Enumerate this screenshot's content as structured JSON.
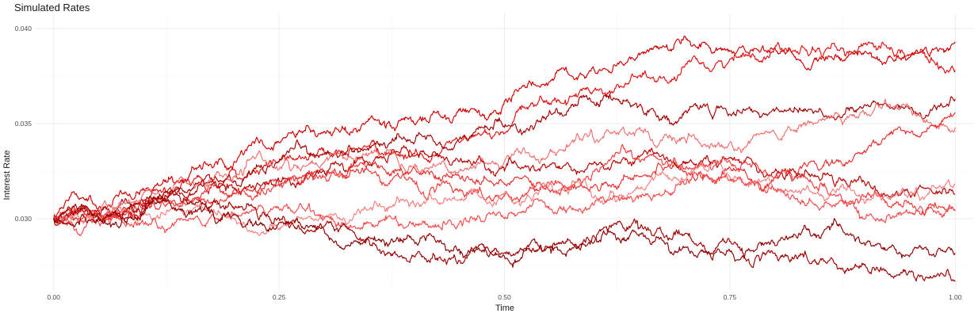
{
  "chart_data": {
    "type": "line",
    "title": "Simulated Rates",
    "xlabel": "Time",
    "ylabel": "Interest Rate",
    "xlim": [
      -0.02,
      1.02
    ],
    "ylim": [
      0.02625,
      0.04075
    ],
    "x_ticks": [
      0.0,
      0.25,
      0.5,
      0.75,
      1.0
    ],
    "x_tick_labels": [
      "0.00",
      "0.25",
      "0.50",
      "0.75",
      "1.00"
    ],
    "y_ticks": [
      0.03,
      0.035,
      0.04
    ],
    "y_tick_labels": [
      "0.030",
      "0.035",
      "0.040"
    ],
    "grid": true,
    "legend": "none",
    "x": [
      0.0,
      0.05,
      0.1,
      0.15,
      0.2,
      0.25,
      0.3,
      0.35,
      0.4,
      0.45,
      0.5,
      0.55,
      0.6,
      0.65,
      0.7,
      0.75,
      0.8,
      0.85,
      0.9,
      0.95,
      1.0
    ],
    "series": [
      {
        "color": "#cc0000",
        "values": [
          0.03,
          0.0306,
          0.0315,
          0.0322,
          0.033,
          0.034,
          0.0346,
          0.0352,
          0.035,
          0.0357,
          0.0362,
          0.0372,
          0.0378,
          0.0386,
          0.0396,
          0.0388,
          0.039,
          0.0385,
          0.0388,
          0.0385,
          0.0393
        ]
      },
      {
        "color": "#e01010",
        "values": [
          0.03,
          0.0303,
          0.031,
          0.032,
          0.0326,
          0.033,
          0.0335,
          0.0338,
          0.0334,
          0.034,
          0.0345,
          0.036,
          0.0368,
          0.0375,
          0.038,
          0.0384,
          0.039,
          0.0388,
          0.0392,
          0.0386,
          0.0378
        ]
      },
      {
        "color": "#a00000",
        "values": [
          0.03,
          0.0302,
          0.0308,
          0.0315,
          0.032,
          0.033,
          0.0334,
          0.0337,
          0.034,
          0.0342,
          0.0348,
          0.0357,
          0.036,
          0.036,
          0.0356,
          0.0355,
          0.0357,
          0.0358,
          0.036,
          0.0358,
          0.0363
        ]
      },
      {
        "color": "#f07070",
        "values": [
          0.03,
          0.0305,
          0.0314,
          0.0318,
          0.0322,
          0.0326,
          0.033,
          0.0334,
          0.0328,
          0.0325,
          0.033,
          0.0335,
          0.034,
          0.0348,
          0.0342,
          0.034,
          0.0345,
          0.0352,
          0.0356,
          0.0358,
          0.0348
        ]
      },
      {
        "color": "#e53030",
        "values": [
          0.03,
          0.0302,
          0.0305,
          0.031,
          0.0315,
          0.0318,
          0.0325,
          0.033,
          0.0327,
          0.0322,
          0.0318,
          0.0315,
          0.0318,
          0.0322,
          0.0325,
          0.0327,
          0.0322,
          0.0326,
          0.0335,
          0.0345,
          0.0356
        ]
      },
      {
        "color": "#b50000",
        "values": [
          0.03,
          0.0304,
          0.0307,
          0.0312,
          0.0316,
          0.032,
          0.0325,
          0.0328,
          0.0333,
          0.033,
          0.0325,
          0.0328,
          0.033,
          0.0333,
          0.033,
          0.0332,
          0.0325,
          0.032,
          0.0318,
          0.0312,
          0.0313
        ]
      },
      {
        "color": "#ee3b3b",
        "values": [
          0.03,
          0.0301,
          0.0304,
          0.0308,
          0.0313,
          0.0318,
          0.0322,
          0.0325,
          0.032,
          0.0315,
          0.0312,
          0.0318,
          0.0325,
          0.033,
          0.0326,
          0.033,
          0.0322,
          0.0318,
          0.0312,
          0.0308,
          0.0304
        ]
      },
      {
        "color": "#f58080",
        "values": [
          0.03,
          0.03,
          0.0302,
          0.0304,
          0.03,
          0.0295,
          0.03,
          0.0305,
          0.0308,
          0.031,
          0.0314,
          0.0318,
          0.0312,
          0.0316,
          0.032,
          0.0322,
          0.0315,
          0.0312,
          0.0308,
          0.0314,
          0.0318
        ]
      },
      {
        "color": "#f24a4a",
        "values": [
          0.03,
          0.0298,
          0.0297,
          0.03,
          0.0303,
          0.0305,
          0.03,
          0.0298,
          0.0296,
          0.0298,
          0.03,
          0.0305,
          0.0308,
          0.0312,
          0.0318,
          0.032,
          0.0315,
          0.0305,
          0.03,
          0.0303,
          0.0305
        ]
      },
      {
        "color": "#8b0000",
        "values": [
          0.03,
          0.03,
          0.0303,
          0.0304,
          0.0302,
          0.0298,
          0.0294,
          0.029,
          0.0288,
          0.0284,
          0.028,
          0.0285,
          0.0288,
          0.0292,
          0.0285,
          0.0283,
          0.0286,
          0.029,
          0.0286,
          0.0281,
          0.0282
        ]
      },
      {
        "color": "#9e0000",
        "values": [
          0.03,
          0.0301,
          0.0304,
          0.0308,
          0.0305,
          0.03,
          0.0296,
          0.0288,
          0.028,
          0.0278,
          0.0282,
          0.0285,
          0.029,
          0.0295,
          0.0292,
          0.0288,
          0.0282,
          0.0278,
          0.0276,
          0.0272,
          0.0267
        ]
      }
    ]
  }
}
